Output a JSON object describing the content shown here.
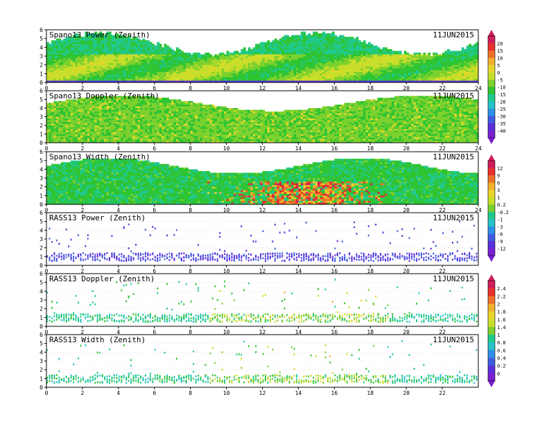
{
  "date_label": "11JUN2015",
  "colorbars": [
    {
      "ticks": [
        "20",
        "15",
        "10",
        "5",
        "0",
        "-5",
        "-10",
        "-15",
        "-20",
        "-25",
        "-30",
        "-35",
        "-40"
      ]
    },
    {
      "ticks": [
        "12",
        "9",
        "6",
        "3",
        "1",
        "0.2",
        "-0.2",
        "-1",
        "-3",
        "-6",
        "-9",
        "-12"
      ]
    },
    {
      "ticks": [
        "2.4",
        "2.2",
        "2",
        "1.8",
        "1.6",
        "1.4",
        "1",
        "0.8",
        "0.6",
        "0.4",
        "0.2",
        "0"
      ]
    }
  ],
  "chart_data": [
    {
      "type": "heatmap",
      "title": "Spano13 Power (Zenith)",
      "xlim": [
        0,
        24
      ],
      "ylim": [
        0,
        6
      ],
      "x_ticks": [
        "0",
        "2",
        "4",
        "6",
        "8",
        "10",
        "12",
        "14",
        "16",
        "18",
        "20",
        "22",
        "24"
      ],
      "y_ticks": [
        "0",
        "1",
        "2",
        "3",
        "4",
        "5",
        "6"
      ],
      "colorbar": 0
    },
    {
      "type": "heatmap",
      "title": "Spano13 Doppler (Zenith)",
      "xlim": [
        0,
        24
      ],
      "ylim": [
        0,
        6
      ],
      "x_ticks": [
        "0",
        "2",
        "4",
        "6",
        "8",
        "10",
        "12",
        "14",
        "16",
        "18",
        "20",
        "22",
        "24"
      ],
      "y_ticks": [
        "0",
        "1",
        "2",
        "3",
        "4",
        "5",
        "6"
      ],
      "colorbar": 0
    },
    {
      "type": "heatmap",
      "title": "Spano13 Width (Zenith)",
      "xlim": [
        0,
        24
      ],
      "ylim": [
        0,
        6
      ],
      "x_ticks": [
        "0",
        "2",
        "4",
        "6",
        "8",
        "10",
        "12",
        "14",
        "16",
        "18",
        "20",
        "22",
        "24"
      ],
      "y_ticks": [
        "0",
        "1",
        "2",
        "3",
        "4",
        "5",
        "6"
      ],
      "colorbar": 1
    },
    {
      "type": "heatmap",
      "title": "RASS13 Power (Zenith)",
      "xlim": [
        0,
        24
      ],
      "ylim": [
        0,
        6
      ],
      "x_ticks": [
        "0",
        "2",
        "4",
        "6",
        "8",
        "10",
        "12",
        "14",
        "16",
        "18",
        "20",
        "22"
      ],
      "y_ticks": [
        "0",
        "1",
        "2",
        "3",
        "4",
        "5",
        "6"
      ],
      "colorbar": 1
    },
    {
      "type": "heatmap",
      "title": "RASS13 Doppler (Zenith)",
      "xlim": [
        0,
        24
      ],
      "ylim": [
        0,
        6
      ],
      "x_ticks": [
        "0",
        "2",
        "4",
        "6",
        "8",
        "10",
        "12",
        "14",
        "16",
        "18",
        "20",
        "22"
      ],
      "y_ticks": [
        "0",
        "1",
        "2",
        "3",
        "4",
        "5",
        "6"
      ],
      "colorbar": 2
    },
    {
      "type": "heatmap",
      "title": "RASS13 Width (Zenith)",
      "xlim": [
        0,
        24
      ],
      "ylim": [
        0,
        6
      ],
      "x_ticks": [
        "0",
        "2",
        "4",
        "6",
        "8",
        "10",
        "12",
        "14",
        "16",
        "18",
        "20",
        "22"
      ],
      "y_ticks": [
        "0",
        "1",
        "2",
        "3",
        "4",
        "5",
        "6"
      ],
      "colorbar": 2
    }
  ]
}
